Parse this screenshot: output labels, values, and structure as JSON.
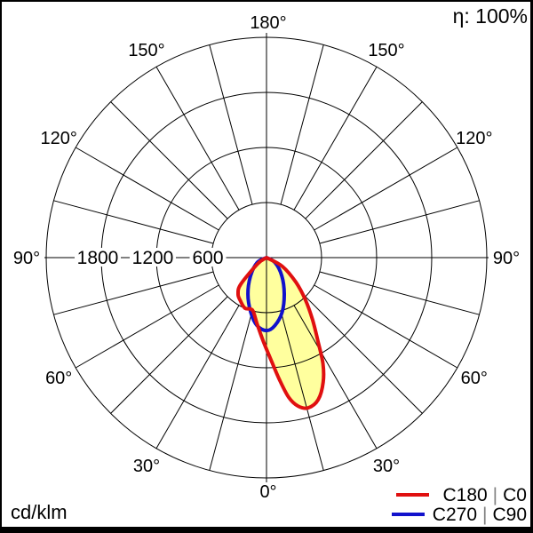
{
  "labels": {
    "efficiency": "η: 100%",
    "unit": "cd/klm"
  },
  "legend": {
    "items": [
      {
        "plane_a": "C180",
        "separator": "|",
        "plane_b": "C0",
        "color": "#e01010"
      },
      {
        "plane_a": "C270",
        "separator": "|",
        "plane_b": "C90",
        "color": "#1212cc"
      }
    ]
  },
  "colors": {
    "curve_c180_c0": "#e01010",
    "curve_c270_c90": "#1212cc",
    "beam_fill": "#ffff9e",
    "grid": "#000000",
    "frame": "#000000",
    "background": "#ffffff",
    "separator": "#808080",
    "text": "#000000"
  },
  "chart_data": {
    "type": "polar",
    "subtype": "photometric_intensity_distribution",
    "unit": "cd/klm",
    "efficiency_percent": 100,
    "angle_convention": "0 deg = nadir (straight down); negative angles toward C180/C270 side (left), positive toward C0/C90 side (right)",
    "angle_grid_step_deg": 15,
    "angle_label_step_deg": 30,
    "angle_labels": [
      {
        "deg": 0,
        "label": "0°"
      },
      {
        "deg": 30,
        "label": "30°"
      },
      {
        "deg": 60,
        "label": "60°"
      },
      {
        "deg": 90,
        "label": "90°"
      },
      {
        "deg": 120,
        "label": "120°"
      },
      {
        "deg": 150,
        "label": "150°"
      },
      {
        "deg": 180,
        "label": "180°"
      }
    ],
    "radial_ticks": [
      600,
      1200,
      1800
    ],
    "radial_max": 2400,
    "series": [
      {
        "name": "C180 | C0",
        "color": "#e01010",
        "fill": "#ffff9e",
        "max_intensity": {
          "angle_deg": 15.5,
          "value": 1700
        },
        "points": [
          [
            -55,
            118
          ],
          [
            -44,
            404
          ],
          [
            -38,
            503
          ],
          [
            -31,
            551
          ],
          [
            -23,
            599
          ],
          [
            -15,
            592
          ],
          [
            -8,
            732
          ],
          [
            -2,
            920
          ],
          [
            2.5,
            1114
          ],
          [
            6,
            1333
          ],
          [
            9,
            1539
          ],
          [
            12,
            1653
          ],
          [
            15.5,
            1698
          ],
          [
            20,
            1647
          ],
          [
            24.5,
            1490
          ],
          [
            28,
            1311
          ],
          [
            31.5,
            1077
          ],
          [
            36.5,
            844
          ],
          [
            42.5,
            630
          ],
          [
            50,
            419
          ],
          [
            61,
            199
          ]
        ]
      },
      {
        "name": "C270 | C90",
        "color": "#1212cc",
        "fill": "none",
        "max_intensity": {
          "angle_deg": 0,
          "value": 795
        },
        "points": [
          [
            -62,
            115
          ],
          [
            -41,
            265
          ],
          [
            -27,
            446
          ],
          [
            -16,
            620
          ],
          [
            -8,
            747
          ],
          [
            0,
            795
          ],
          [
            7,
            746
          ],
          [
            16,
            618
          ],
          [
            26,
            441
          ],
          [
            40,
            259
          ],
          [
            60,
            106
          ]
        ]
      }
    ]
  }
}
